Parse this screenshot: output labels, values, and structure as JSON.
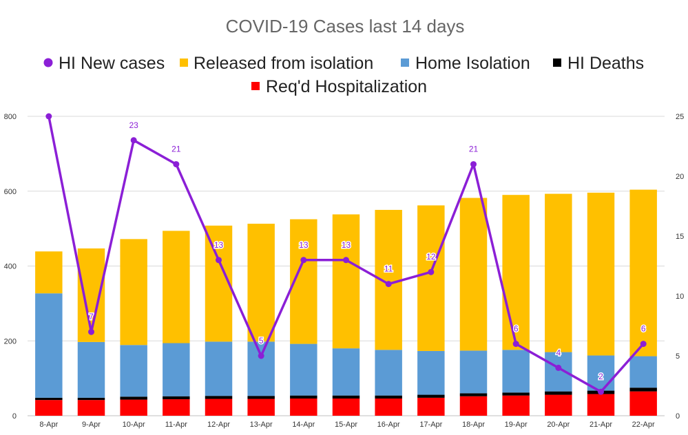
{
  "chart_data": {
    "type": "bar",
    "title": "COVID-19 Cases last 14 days",
    "categories": [
      "8-Apr",
      "9-Apr",
      "10-Apr",
      "11-Apr",
      "12-Apr",
      "13-Apr",
      "14-Apr",
      "15-Apr",
      "16-Apr",
      "17-Apr",
      "18-Apr",
      "19-Apr",
      "20-Apr",
      "21-Apr",
      "22-Apr"
    ],
    "stacked": true,
    "ylim": [
      0,
      800
    ],
    "yticks": [
      "0",
      "200",
      "400",
      "600",
      "800"
    ],
    "y2lim": [
      0,
      25
    ],
    "y2ticks": [
      "0",
      "5",
      "10",
      "15",
      "20",
      "25"
    ],
    "grid": true,
    "legend_position": "top",
    "series": [
      {
        "name": "Req'd Hospitalization",
        "kind": "bar",
        "axis": "left",
        "color": "#ff0000",
        "values": [
          42,
          42,
          43,
          44,
          45,
          45,
          46,
          46,
          46,
          48,
          52,
          54,
          56,
          58,
          65
        ]
      },
      {
        "name": "HI Deaths",
        "kind": "bar",
        "axis": "left",
        "color": "#000000",
        "values": [
          6,
          6,
          8,
          8,
          8,
          8,
          8,
          8,
          8,
          8,
          8,
          8,
          9,
          9,
          10
        ]
      },
      {
        "name": "Home Isolation",
        "kind": "bar",
        "axis": "left",
        "color": "#5b9bd5",
        "values": [
          279,
          149,
          138,
          142,
          145,
          145,
          138,
          126,
          122,
          117,
          114,
          114,
          105,
          94,
          84
        ]
      },
      {
        "name": "Released from isolation",
        "kind": "bar",
        "axis": "left",
        "color": "#ffc000",
        "values": [
          112,
          250,
          283,
          300,
          310,
          315,
          333,
          358,
          374,
          389,
          408,
          414,
          423,
          435,
          445
        ]
      },
      {
        "name": "HI New cases",
        "kind": "line",
        "axis": "right",
        "color": "#8b1fd6",
        "values": [
          25,
          7,
          23,
          21,
          13,
          5,
          13,
          13,
          11,
          12,
          21,
          6,
          4,
          2,
          6
        ],
        "labels": [
          "",
          "7",
          "23",
          "21",
          "13",
          "5",
          "13",
          "13",
          "11",
          "12",
          "21",
          "6",
          "4",
          "2",
          "6"
        ]
      }
    ],
    "legend": [
      {
        "name": "HI New cases",
        "symbol": "circle",
        "color": "#8b1fd6"
      },
      {
        "name": "Released from isolation",
        "symbol": "square",
        "color": "#ffc000"
      },
      {
        "name": "Home Isolation",
        "symbol": "square",
        "color": "#5b9bd5"
      },
      {
        "name": "HI Deaths",
        "symbol": "square",
        "color": "#000000"
      },
      {
        "name": "Req'd Hospitalization",
        "symbol": "square",
        "color": "#ff0000"
      }
    ]
  }
}
